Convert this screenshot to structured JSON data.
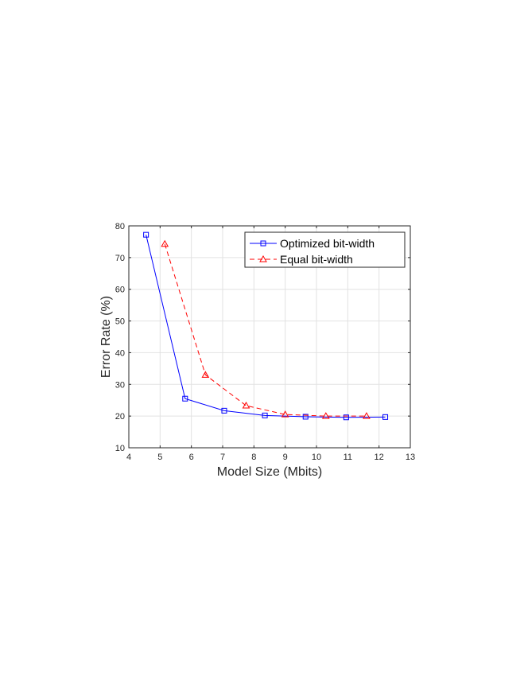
{
  "chart_data": {
    "type": "line",
    "xlabel": "Model Size (Mbits)",
    "ylabel": "Error Rate (%)",
    "xlim": [
      4,
      13
    ],
    "ylim": [
      10,
      80
    ],
    "xticks": [
      "4",
      "5",
      "6",
      "7",
      "8",
      "9",
      "10",
      "11",
      "12",
      "13"
    ],
    "yticks": [
      "10",
      "20",
      "30",
      "40",
      "50",
      "60",
      "70",
      "80"
    ],
    "grid": true,
    "legend_position": "top-right",
    "series": [
      {
        "name": "Optimized bit-width",
        "color": "#0000ff",
        "line_style": "solid",
        "marker": "square",
        "x": [
          4.55,
          5.8,
          7.05,
          8.35,
          9.65,
          10.95,
          12.2
        ],
        "y": [
          77.2,
          25.5,
          21.7,
          20.2,
          19.8,
          19.6,
          19.7
        ]
      },
      {
        "name": "Equal bit-width",
        "color": "#ff0000",
        "line_style": "dashed",
        "marker": "triangle",
        "x": [
          5.15,
          6.45,
          7.75,
          9.0,
          10.3,
          11.6
        ],
        "y": [
          74.3,
          33.0,
          23.3,
          20.5,
          20.0,
          20.0
        ]
      }
    ]
  }
}
